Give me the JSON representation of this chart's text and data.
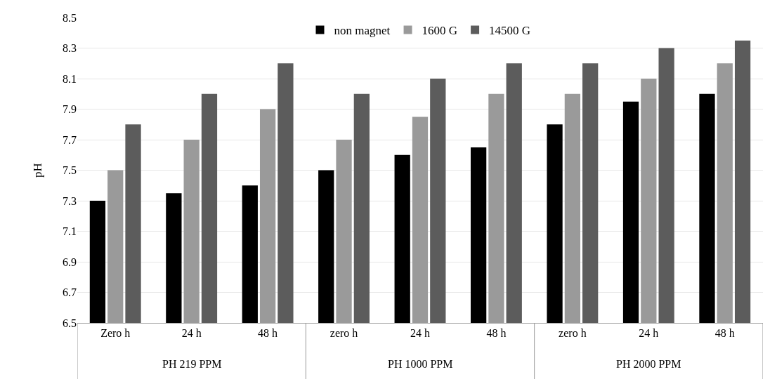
{
  "chart_data": {
    "type": "bar",
    "ylabel": "pH",
    "categories": [
      "Zero h",
      "24 h",
      "48 h",
      "zero h",
      "24 h",
      "48 h",
      "zero h",
      "24 h",
      "48 h"
    ],
    "series": [
      {
        "name": "non magnet",
        "color": "#000000",
        "values": [
          7.3,
          7.35,
          7.4,
          7.5,
          7.6,
          7.65,
          7.8,
          7.95,
          8.0
        ]
      },
      {
        "name": "1600 G",
        "color": "#9a9a9a",
        "values": [
          7.5,
          7.7,
          7.9,
          7.7,
          7.85,
          8.0,
          8.0,
          8.1,
          8.2
        ]
      },
      {
        "name": "14500 G",
        "color": "#5c5c5c",
        "values": [
          7.8,
          8.0,
          8.2,
          8.0,
          8.1,
          8.2,
          8.2,
          8.3,
          8.35
        ]
      }
    ],
    "ylim": [
      6.5,
      8.5
    ],
    "yticks": [
      6.5,
      6.7,
      6.9,
      7.1,
      7.3,
      7.5,
      7.7,
      7.9,
      8.1,
      8.3,
      8.5
    ],
    "grid": "y",
    "legend": "top",
    "annotations": [
      "PH 219 PPM",
      "PH 1000 PPM",
      "PH 2000 PPM"
    ]
  }
}
